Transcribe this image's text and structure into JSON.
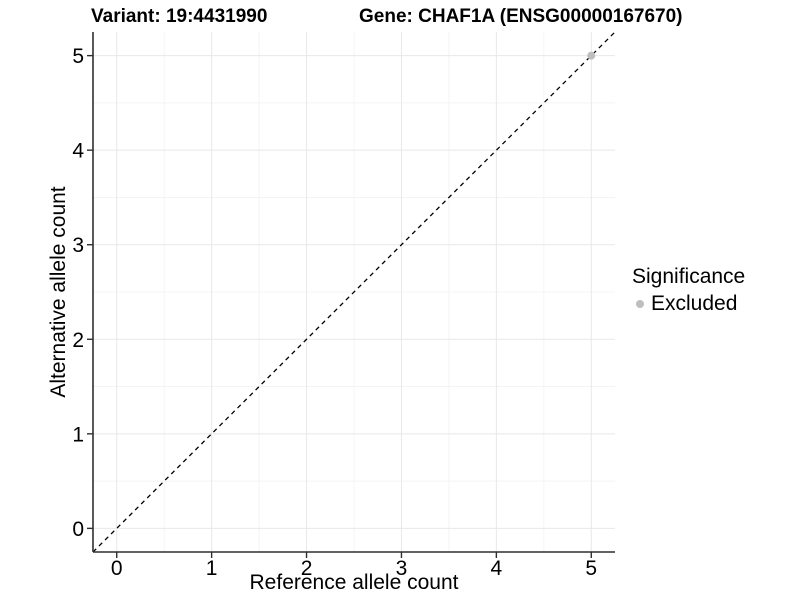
{
  "titles": {
    "variant": "Variant: 19:4431990",
    "gene": "Gene: CHAF1A (ENSG00000167670)"
  },
  "chart_data": {
    "type": "scatter",
    "xlabel": "Reference allele count",
    "ylabel": "Alternative allele count",
    "xlim": [
      -0.25,
      5.25
    ],
    "ylim": [
      -0.25,
      5.25
    ],
    "xticks": [
      0,
      1,
      2,
      3,
      4,
      5
    ],
    "yticks": [
      0,
      1,
      2,
      3,
      4,
      5
    ],
    "minor_ticks_x": [
      0.5,
      1.5,
      2.5,
      3.5,
      4.5
    ],
    "minor_ticks_y": [
      0.5,
      1.5,
      2.5,
      3.5,
      4.5
    ],
    "grid": "major+minor",
    "identity_line": {
      "equation": "y = x",
      "style": "dashed",
      "color": "#000000"
    },
    "points": [
      {
        "x": 5,
        "y": 5,
        "significance": "Excluded"
      }
    ],
    "legend_position": "right"
  },
  "legend": {
    "title": "Significance",
    "items": [
      {
        "label": "Excluded",
        "color": "#bebebe",
        "marker": "circle"
      }
    ]
  },
  "style": {
    "background": "#ffffff",
    "major_grid_color": "#e8e8e8",
    "minor_grid_color": "#f4f4f4",
    "axis_color": "#2f2f2f",
    "tick_color": "#2f2f2f",
    "point_color": "#bebebe",
    "text_color": "#000000"
  }
}
